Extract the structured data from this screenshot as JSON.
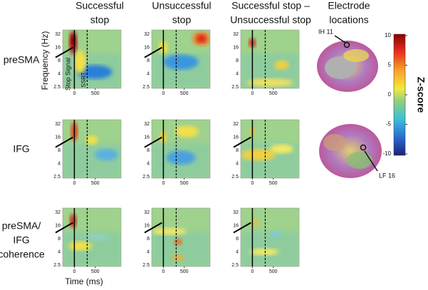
{
  "columns": [
    {
      "lines": [
        "Successful",
        "stop"
      ]
    },
    {
      "lines": [
        "Unsuccessful",
        "stop"
      ]
    },
    {
      "lines": [
        "Successful stop –",
        "Unsuccessful stop"
      ]
    },
    {
      "lines": [
        "Electrode",
        "locations"
      ]
    }
  ],
  "rows": [
    {
      "lines": [
        "preSMA"
      ]
    },
    {
      "lines": [
        "IFG"
      ]
    },
    {
      "lines": [
        "preSMA/",
        "IFG",
        "coherence"
      ]
    }
  ],
  "y_axis_label": "Frequency (Hz)",
  "x_axis_label": "Time (ms)",
  "yticks": [
    32,
    16,
    8,
    4,
    2.5
  ],
  "xticks": [
    0,
    500
  ],
  "annotations": {
    "stop_signal": "Stop Signal",
    "ssrt": "SSRT",
    "ih": "IH 11",
    "lf": "LF 16"
  },
  "colorbar": {
    "label": "Z-score",
    "ticks": [
      10,
      5,
      0,
      -5,
      -10
    ]
  }
}
